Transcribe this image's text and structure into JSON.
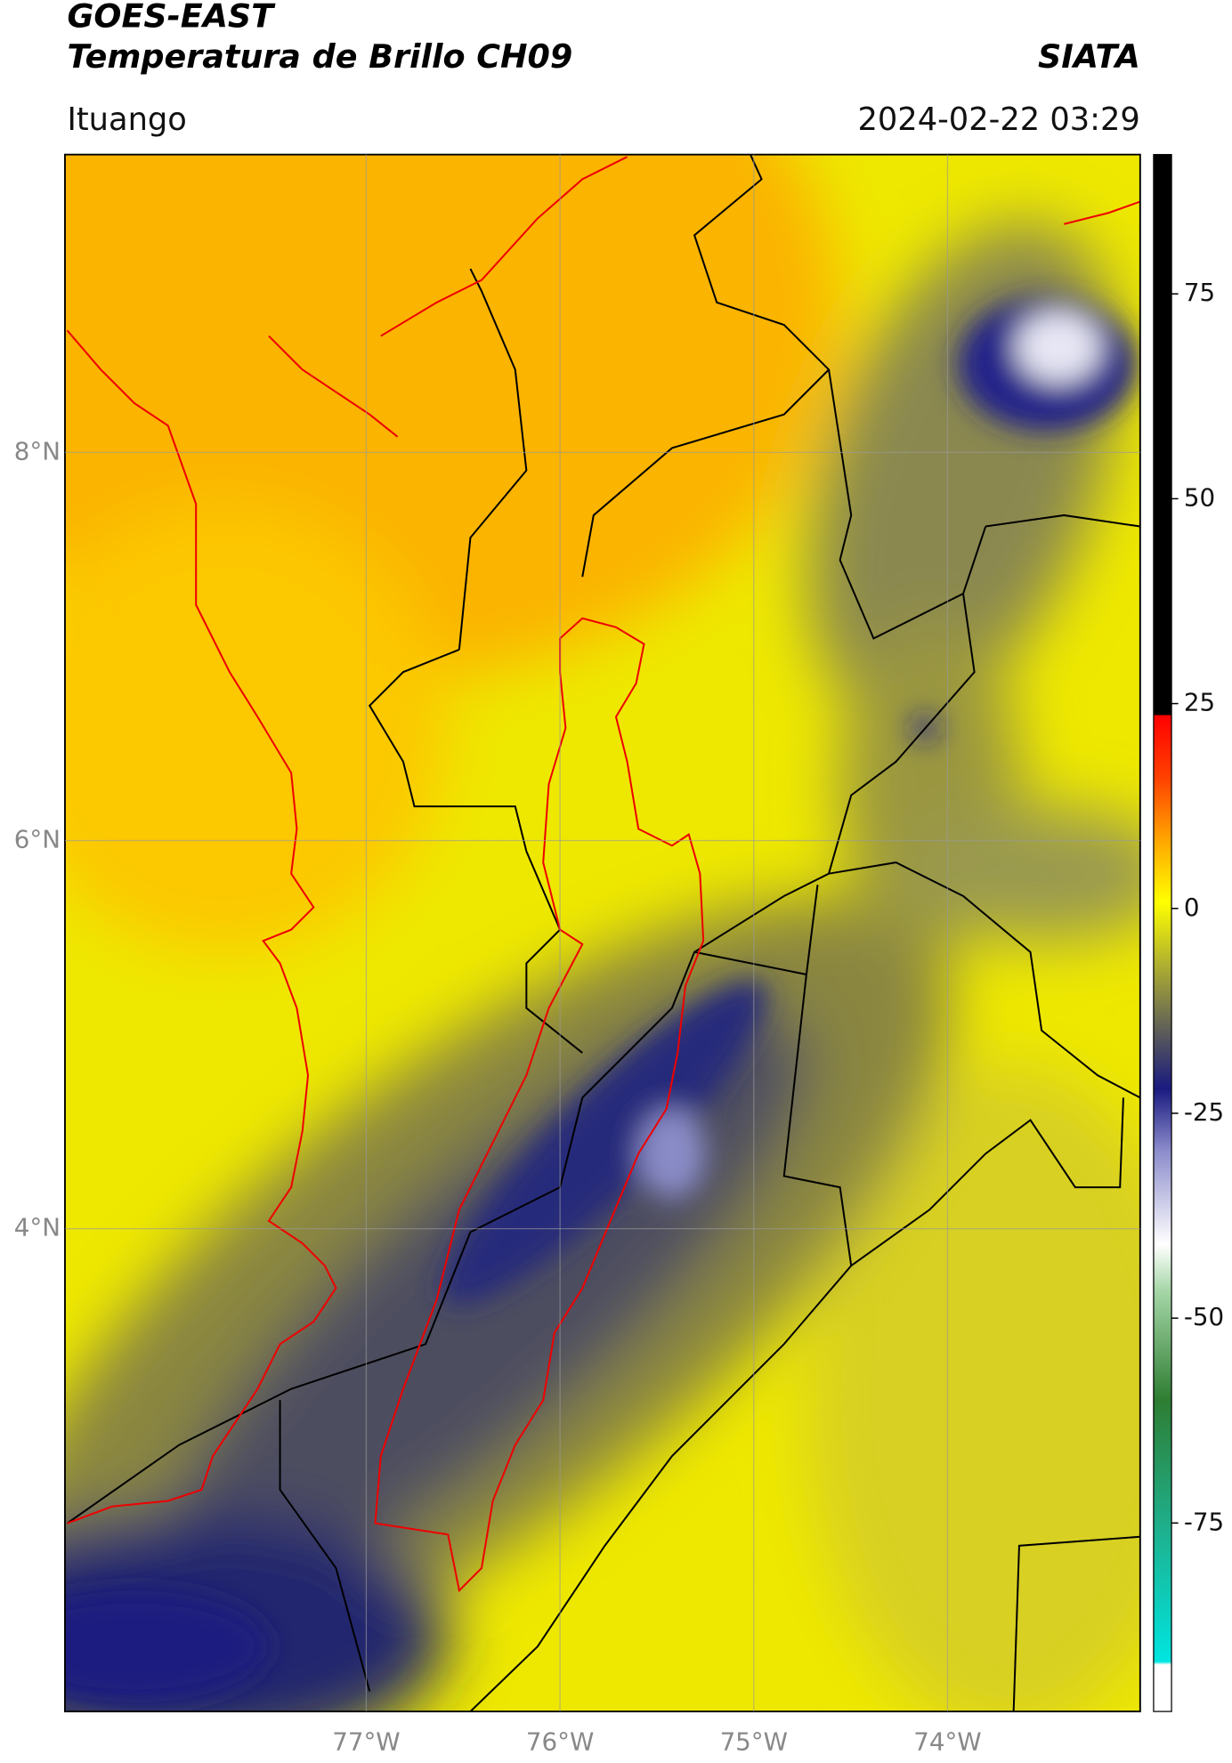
{
  "header": {
    "title": "GOES-EAST",
    "subtitle": "Temperatura de Brillo CH09",
    "source": "SIATA",
    "location": "Ituango",
    "datetime": "2024-02-22 03:29"
  },
  "map": {
    "xlim": [
      -78.555,
      -73.006
    ],
    "ylim": [
      1.512,
      9.535
    ],
    "lon_ticks": [
      {
        "value": -77,
        "label": "77°W"
      },
      {
        "value": -76,
        "label": "76°W"
      },
      {
        "value": -75,
        "label": "75°W"
      },
      {
        "value": -74,
        "label": "74°W"
      }
    ],
    "lat_ticks": [
      {
        "value": 8,
        "label": "8°N"
      },
      {
        "value": 6,
        "label": "6°N"
      },
      {
        "value": 4,
        "label": "4°N"
      }
    ]
  },
  "colorbar": {
    "lim": [
      -98,
      92
    ],
    "ticks": [
      75,
      50,
      25,
      0,
      -25,
      -50,
      -75
    ]
  }
}
